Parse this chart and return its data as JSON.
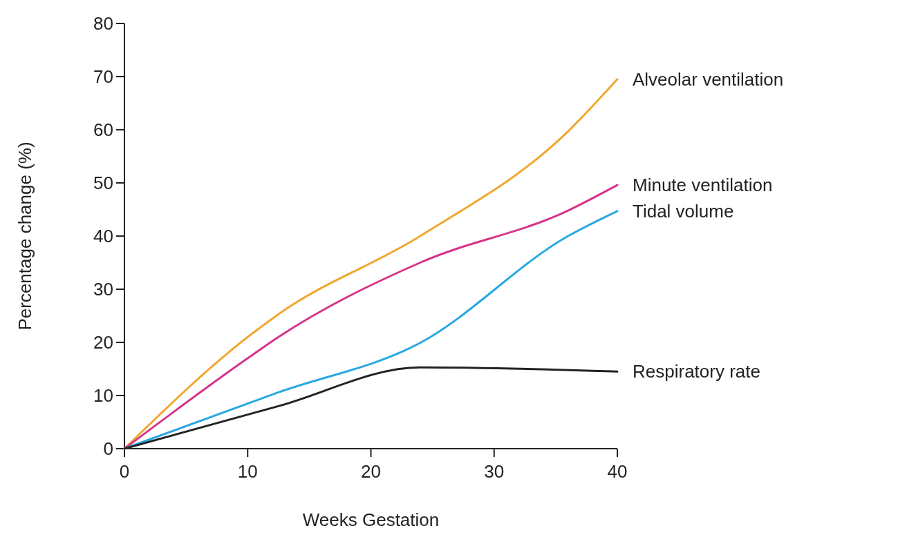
{
  "chart_data": {
    "type": "line",
    "xlabel": "Weeks Gestation",
    "ylabel": "Percentage change (%)",
    "xlim": [
      0,
      40
    ],
    "xticks": [
      0,
      10,
      20,
      30,
      40
    ],
    "ylim": [
      0,
      80
    ],
    "yticks": [
      0,
      10,
      20,
      30,
      40,
      50,
      60,
      70,
      80
    ],
    "grid": false,
    "legend": false,
    "marker": "none",
    "line_style": "solid",
    "series": [
      {
        "name": "Alveolar ventilation",
        "color": "#f0a830",
        "x": [
          0,
          10,
          12.5,
          24,
          36,
          40
        ],
        "values": [
          0,
          21,
          25.3,
          40,
          59.7,
          69.5
        ]
      },
      {
        "name": "Minute ventilation",
        "color": "#d6338a",
        "x": [
          0,
          10,
          12.5,
          24,
          36,
          40
        ],
        "values": [
          0,
          17,
          21,
          35,
          44.8,
          49.6
        ]
      },
      {
        "name": "Tidal volume",
        "color": "#29a8e0",
        "x": [
          0,
          12.5,
          24,
          36,
          40
        ],
        "values": [
          0,
          10.6,
          19.9,
          40,
          44.7
        ]
      },
      {
        "name": "Respiratory rate",
        "color": "#222222",
        "x": [
          0,
          12.5,
          24,
          40
        ],
        "values": [
          0,
          8,
          15.3,
          14.5
        ]
      }
    ]
  }
}
